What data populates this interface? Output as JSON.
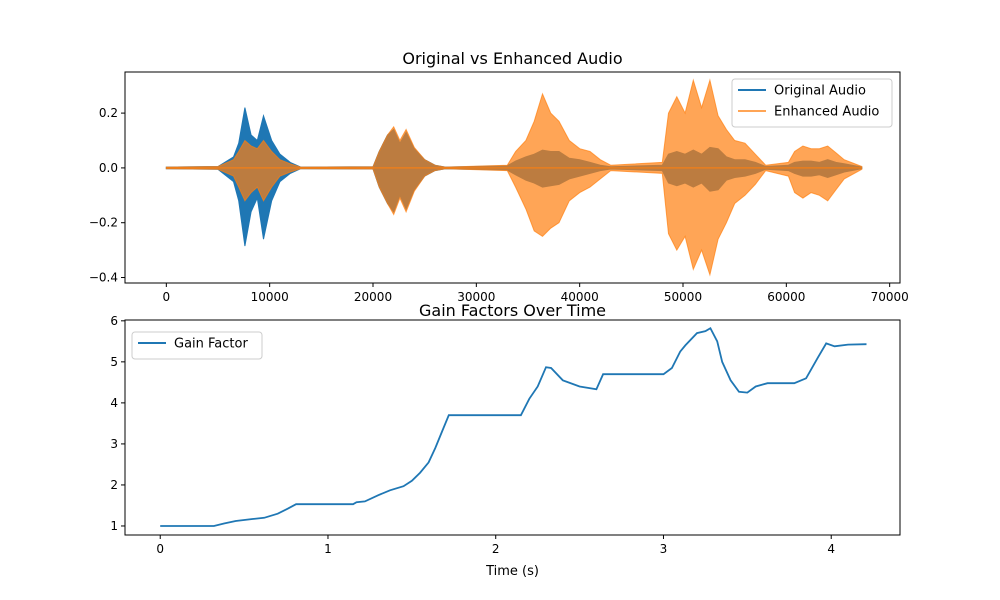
{
  "chart_data": [
    {
      "type": "line",
      "title": "Original vs Enhanced Audio",
      "xlabel": "",
      "ylabel": "",
      "xlim": [
        -4000,
        71000
      ],
      "ylim": [
        -0.42,
        0.35
      ],
      "xticks": [
        0,
        10000,
        20000,
        30000,
        40000,
        50000,
        60000,
        70000
      ],
      "yticks": [
        -0.4,
        -0.2,
        0.0,
        0.2
      ],
      "xtick_labels": [
        "0",
        "10000",
        "20000",
        "30000",
        "40000",
        "50000",
        "60000",
        "70000"
      ],
      "ytick_labels": [
        "−0.4",
        "−0.2",
        "0.0",
        "0.2"
      ],
      "grid": false,
      "legend": "upper-right",
      "series": [
        {
          "name": "Original Audio",
          "color": "#1f77b4",
          "style": "envelope",
          "x": [
            0,
            5000,
            6500,
            7000,
            7600,
            8200,
            8800,
            9400,
            10200,
            11000,
            12000,
            13000,
            20000,
            20600,
            21400,
            22000,
            22600,
            23200,
            24000,
            25000,
            26000,
            27000,
            33000,
            33800,
            34800,
            35600,
            36400,
            37200,
            38000,
            39000,
            40000,
            41000,
            42000,
            43000,
            48000,
            48600,
            49400,
            50200,
            51000,
            51800,
            52600,
            53400,
            54200,
            55000,
            56000,
            57000,
            58000,
            60200,
            60800,
            61600,
            62400,
            63200,
            64000,
            64800,
            65600,
            67300
          ],
          "top": [
            0.003,
            0.005,
            0.04,
            0.09,
            0.22,
            0.12,
            0.1,
            0.19,
            0.1,
            0.05,
            0.02,
            0.003,
            0.004,
            0.06,
            0.12,
            0.14,
            0.09,
            0.13,
            0.07,
            0.03,
            0.01,
            0.003,
            0.008,
            0.025,
            0.04,
            0.05,
            0.065,
            0.06,
            0.06,
            0.035,
            0.03,
            0.02,
            0.01,
            0.004,
            0.01,
            0.05,
            0.06,
            0.05,
            0.065,
            0.05,
            0.075,
            0.07,
            0.04,
            0.03,
            0.03,
            0.02,
            0.005,
            0.01,
            0.02,
            0.025,
            0.025,
            0.02,
            0.03,
            0.02,
            0.015,
            0.003
          ],
          "bottom": [
            -0.003,
            -0.005,
            -0.05,
            -0.12,
            -0.285,
            -0.16,
            -0.11,
            -0.26,
            -0.12,
            -0.05,
            -0.02,
            -0.003,
            -0.004,
            -0.07,
            -0.13,
            -0.16,
            -0.1,
            -0.15,
            -0.08,
            -0.03,
            -0.01,
            -0.003,
            -0.008,
            -0.025,
            -0.045,
            -0.055,
            -0.07,
            -0.065,
            -0.06,
            -0.04,
            -0.03,
            -0.02,
            -0.01,
            -0.004,
            -0.01,
            -0.055,
            -0.065,
            -0.055,
            -0.07,
            -0.055,
            -0.085,
            -0.08,
            -0.045,
            -0.035,
            -0.03,
            -0.02,
            -0.005,
            -0.01,
            -0.02,
            -0.03,
            -0.03,
            -0.025,
            -0.035,
            -0.025,
            -0.015,
            -0.003
          ]
        },
        {
          "name": "Enhanced Audio",
          "color": "#ff7f0e",
          "opacity": 0.7,
          "style": "envelope",
          "x": [
            0,
            5000,
            6500,
            7000,
            7600,
            8200,
            8800,
            9400,
            10200,
            11000,
            12000,
            13000,
            20000,
            20600,
            21400,
            22000,
            22600,
            23200,
            24000,
            25000,
            26000,
            27000,
            33000,
            33800,
            34800,
            35600,
            36400,
            37200,
            38000,
            39000,
            40000,
            41000,
            42000,
            43000,
            48000,
            48600,
            49400,
            50200,
            51000,
            51800,
            52600,
            53400,
            54200,
            55000,
            56000,
            57000,
            58000,
            60200,
            60800,
            61600,
            62400,
            63200,
            64000,
            64800,
            65600,
            67300
          ],
          "top": [
            0.003,
            0.005,
            0.03,
            0.06,
            0.1,
            0.08,
            0.07,
            0.1,
            0.06,
            0.03,
            0.015,
            0.003,
            0.004,
            0.06,
            0.12,
            0.15,
            0.1,
            0.14,
            0.075,
            0.03,
            0.01,
            0.003,
            0.01,
            0.06,
            0.1,
            0.17,
            0.27,
            0.2,
            0.17,
            0.1,
            0.07,
            0.06,
            0.03,
            0.01,
            0.02,
            0.2,
            0.26,
            0.2,
            0.32,
            0.22,
            0.32,
            0.19,
            0.14,
            0.1,
            0.09,
            0.05,
            0.01,
            0.02,
            0.06,
            0.08,
            0.07,
            0.07,
            0.08,
            0.055,
            0.03,
            0.005
          ],
          "bottom": [
            -0.003,
            -0.005,
            -0.03,
            -0.07,
            -0.12,
            -0.09,
            -0.07,
            -0.12,
            -0.07,
            -0.03,
            -0.015,
            -0.003,
            -0.004,
            -0.07,
            -0.13,
            -0.17,
            -0.11,
            -0.16,
            -0.085,
            -0.03,
            -0.01,
            -0.003,
            -0.01,
            -0.07,
            -0.15,
            -0.23,
            -0.25,
            -0.22,
            -0.2,
            -0.12,
            -0.09,
            -0.07,
            -0.04,
            -0.01,
            -0.02,
            -0.24,
            -0.3,
            -0.25,
            -0.37,
            -0.3,
            -0.39,
            -0.26,
            -0.2,
            -0.13,
            -0.1,
            -0.06,
            -0.01,
            -0.03,
            -0.09,
            -0.11,
            -0.09,
            -0.1,
            -0.12,
            -0.08,
            -0.04,
            -0.005
          ]
        }
      ]
    },
    {
      "type": "line",
      "title": "Gain Factors Over Time",
      "xlabel": "Time (s)",
      "ylabel": "",
      "xlim": [
        -0.21,
        4.41
      ],
      "ylim": [
        0.78,
        6.02
      ],
      "xticks": [
        0,
        1,
        2,
        3,
        4
      ],
      "yticks": [
        1,
        2,
        3,
        4,
        5,
        6
      ],
      "xtick_labels": [
        "0",
        "1",
        "2",
        "3",
        "4"
      ],
      "ytick_labels": [
        "1",
        "2",
        "3",
        "4",
        "5",
        "6"
      ],
      "grid": false,
      "legend": "upper-left",
      "series": [
        {
          "name": "Gain Factor",
          "color": "#1f77b4",
          "x": [
            0,
            0.32,
            0.38,
            0.45,
            0.55,
            0.62,
            0.7,
            0.76,
            0.81,
            1.15,
            1.17,
            1.22,
            1.3,
            1.37,
            1.45,
            1.5,
            1.55,
            1.6,
            1.64,
            1.68,
            1.72,
            2.1,
            2.15,
            2.2,
            2.25,
            2.3,
            2.33,
            2.4,
            2.5,
            2.6,
            2.64,
            3.0,
            3.05,
            3.1,
            3.13,
            3.2,
            3.25,
            3.28,
            3.32,
            3.35,
            3.4,
            3.45,
            3.5,
            3.55,
            3.62,
            3.78,
            3.85,
            3.92,
            3.97,
            4.02,
            4.1,
            4.21
          ],
          "y": [
            1.0,
            1.0,
            1.06,
            1.12,
            1.17,
            1.2,
            1.3,
            1.42,
            1.53,
            1.53,
            1.58,
            1.6,
            1.75,
            1.87,
            1.97,
            2.1,
            2.3,
            2.55,
            2.9,
            3.3,
            3.7,
            3.7,
            3.7,
            4.1,
            4.4,
            4.87,
            4.85,
            4.55,
            4.4,
            4.33,
            4.7,
            4.7,
            4.85,
            5.25,
            5.4,
            5.7,
            5.75,
            5.82,
            5.5,
            5.0,
            4.55,
            4.27,
            4.25,
            4.4,
            4.48,
            4.48,
            4.6,
            5.1,
            5.45,
            5.38,
            5.42,
            5.43
          ]
        }
      ]
    }
  ]
}
